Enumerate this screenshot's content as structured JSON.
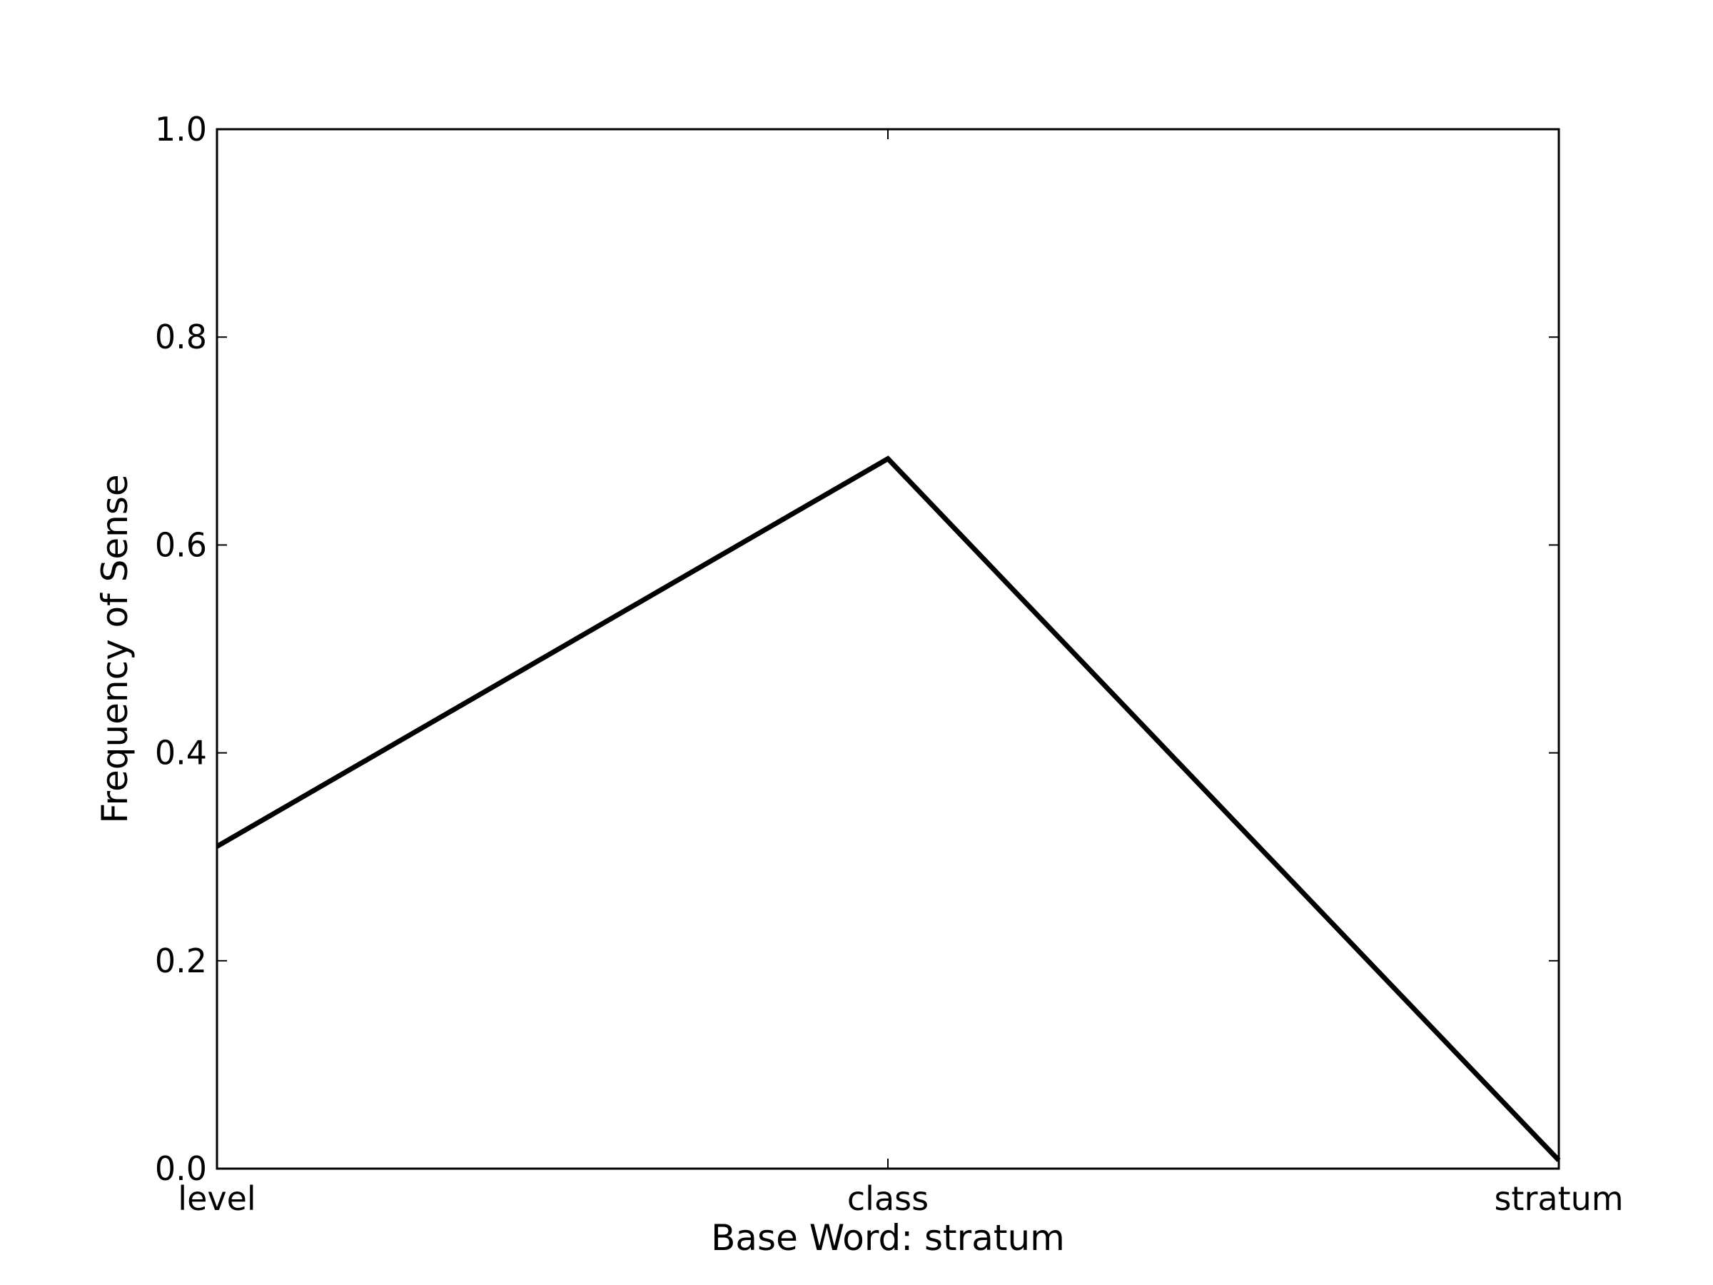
{
  "chart_data": {
    "type": "line",
    "title": "",
    "xlabel": "Base Word: stratum",
    "ylabel": "Frequency of Sense",
    "categories": [
      "level",
      "class",
      "stratum"
    ],
    "series": [
      {
        "values": [
          0.31,
          0.683,
          0.008
        ],
        "color": "#000000"
      }
    ],
    "ylim": [
      0.0,
      1.0
    ],
    "yticks": [
      "0.0",
      "0.2",
      "0.4",
      "0.6",
      "0.8",
      "1.0"
    ],
    "grid": false,
    "legend": "none"
  }
}
